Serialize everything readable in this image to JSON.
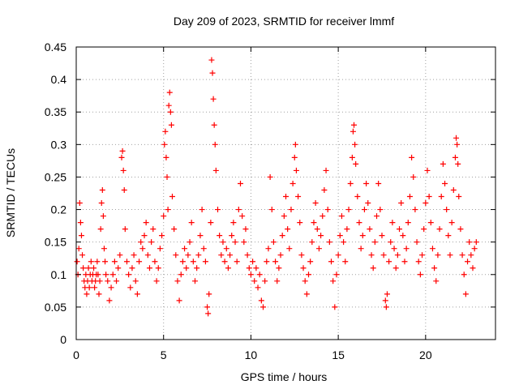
{
  "chart_data": {
    "type": "scatter",
    "title": "Day 209 of 2023, SRMTID for receiver lmmf",
    "xlabel": "GPS time / hours",
    "ylabel": "SRMTID / TECUs",
    "xlim": [
      0,
      24
    ],
    "ylim": [
      0,
      0.45
    ],
    "xticks": [
      0,
      5,
      10,
      15,
      20
    ],
    "xtick_labels": [
      "0",
      "5",
      "10",
      "15",
      "20"
    ],
    "yticks": [
      0,
      0.05,
      0.1,
      0.15,
      0.2,
      0.25,
      0.3,
      0.35,
      0.4,
      0.45
    ],
    "ytick_labels": [
      "0",
      "0.05",
      "0.1",
      "0.15",
      "0.2",
      "0.25",
      "0.3",
      "0.35",
      "0.4",
      "0.45"
    ],
    "grid": true,
    "marker": "+",
    "marker_color": "#ff0000",
    "series": [
      {
        "name": "SRMTID",
        "points": [
          [
            0.05,
            0.12
          ],
          [
            0.1,
            0.1
          ],
          [
            0.15,
            0.14
          ],
          [
            0.2,
            0.21
          ],
          [
            0.25,
            0.18
          ],
          [
            0.3,
            0.16
          ],
          [
            0.35,
            0.13
          ],
          [
            0.4,
            0.11
          ],
          [
            0.45,
            0.09
          ],
          [
            0.5,
            0.08
          ],
          [
            0.55,
            0.1
          ],
          [
            0.6,
            0.07
          ],
          [
            0.65,
            0.09
          ],
          [
            0.7,
            0.11
          ],
          [
            0.75,
            0.08
          ],
          [
            0.8,
            0.1
          ],
          [
            0.85,
            0.12
          ],
          [
            0.9,
            0.09
          ],
          [
            0.95,
            0.1
          ],
          [
            1.0,
            0.11
          ],
          [
            1.05,
            0.08
          ],
          [
            1.1,
            0.09
          ],
          [
            1.15,
            0.1
          ],
          [
            1.2,
            0.12
          ],
          [
            1.25,
            0.1
          ],
          [
            1.3,
            0.07
          ],
          [
            1.35,
            0.09
          ],
          [
            1.4,
            0.17
          ],
          [
            1.45,
            0.21
          ],
          [
            1.5,
            0.23
          ],
          [
            1.55,
            0.19
          ],
          [
            1.6,
            0.14
          ],
          [
            1.65,
            0.12
          ],
          [
            1.7,
            0.1
          ],
          [
            1.8,
            0.09
          ],
          [
            1.9,
            0.06
          ],
          [
            2.0,
            0.08
          ],
          [
            2.1,
            0.1
          ],
          [
            2.2,
            0.12
          ],
          [
            2.3,
            0.09
          ],
          [
            2.4,
            0.11
          ],
          [
            2.5,
            0.13
          ],
          [
            2.6,
            0.28
          ],
          [
            2.65,
            0.29
          ],
          [
            2.7,
            0.26
          ],
          [
            2.75,
            0.23
          ],
          [
            2.8,
            0.17
          ],
          [
            2.9,
            0.12
          ],
          [
            3.0,
            0.1
          ],
          [
            3.1,
            0.08
          ],
          [
            3.2,
            0.11
          ],
          [
            3.3,
            0.13
          ],
          [
            3.4,
            0.09
          ],
          [
            3.5,
            0.07
          ],
          [
            3.6,
            0.12
          ],
          [
            3.7,
            0.15
          ],
          [
            3.8,
            0.14
          ],
          [
            3.9,
            0.16
          ],
          [
            4.0,
            0.18
          ],
          [
            4.1,
            0.13
          ],
          [
            4.2,
            0.11
          ],
          [
            4.3,
            0.15
          ],
          [
            4.4,
            0.17
          ],
          [
            4.5,
            0.12
          ],
          [
            4.6,
            0.09
          ],
          [
            4.7,
            0.11
          ],
          [
            4.8,
            0.14
          ],
          [
            4.9,
            0.16
          ],
          [
            5.0,
            0.19
          ],
          [
            5.05,
            0.3
          ],
          [
            5.1,
            0.32
          ],
          [
            5.15,
            0.28
          ],
          [
            5.2,
            0.25
          ],
          [
            5.25,
            0.2
          ],
          [
            5.3,
            0.36
          ],
          [
            5.35,
            0.38
          ],
          [
            5.4,
            0.35
          ],
          [
            5.45,
            0.33
          ],
          [
            5.5,
            0.22
          ],
          [
            5.6,
            0.17
          ],
          [
            5.7,
            0.13
          ],
          [
            5.8,
            0.09
          ],
          [
            5.9,
            0.06
          ],
          [
            6.0,
            0.1
          ],
          [
            6.1,
            0.12
          ],
          [
            6.2,
            0.14
          ],
          [
            6.3,
            0.11
          ],
          [
            6.4,
            0.13
          ],
          [
            6.5,
            0.15
          ],
          [
            6.6,
            0.18
          ],
          [
            6.7,
            0.12
          ],
          [
            6.8,
            0.09
          ],
          [
            6.9,
            0.11
          ],
          [
            7.0,
            0.13
          ],
          [
            7.1,
            0.16
          ],
          [
            7.2,
            0.2
          ],
          [
            7.3,
            0.14
          ],
          [
            7.4,
            0.12
          ],
          [
            7.5,
            0.05
          ],
          [
            7.55,
            0.04
          ],
          [
            7.6,
            0.07
          ],
          [
            7.7,
            0.18
          ],
          [
            7.75,
            0.43
          ],
          [
            7.8,
            0.41
          ],
          [
            7.85,
            0.37
          ],
          [
            7.9,
            0.33
          ],
          [
            7.95,
            0.3
          ],
          [
            8.0,
            0.26
          ],
          [
            8.1,
            0.2
          ],
          [
            8.2,
            0.16
          ],
          [
            8.3,
            0.13
          ],
          [
            8.4,
            0.15
          ],
          [
            8.5,
            0.12
          ],
          [
            8.6,
            0.14
          ],
          [
            8.7,
            0.11
          ],
          [
            8.8,
            0.13
          ],
          [
            8.9,
            0.16
          ],
          [
            9.0,
            0.18
          ],
          [
            9.1,
            0.15
          ],
          [
            9.2,
            0.12
          ],
          [
            9.3,
            0.2
          ],
          [
            9.4,
            0.24
          ],
          [
            9.5,
            0.19
          ],
          [
            9.6,
            0.15
          ],
          [
            9.7,
            0.17
          ],
          [
            9.8,
            0.13
          ],
          [
            9.9,
            0.11
          ],
          [
            10.0,
            0.1
          ],
          [
            10.1,
            0.12
          ],
          [
            10.2,
            0.09
          ],
          [
            10.3,
            0.11
          ],
          [
            10.4,
            0.08
          ],
          [
            10.5,
            0.1
          ],
          [
            10.6,
            0.06
          ],
          [
            10.7,
            0.05
          ],
          [
            10.8,
            0.09
          ],
          [
            10.9,
            0.12
          ],
          [
            11.0,
            0.14
          ],
          [
            11.1,
            0.25
          ],
          [
            11.2,
            0.2
          ],
          [
            11.3,
            0.15
          ],
          [
            11.4,
            0.12
          ],
          [
            11.5,
            0.09
          ],
          [
            11.6,
            0.11
          ],
          [
            11.7,
            0.13
          ],
          [
            11.8,
            0.16
          ],
          [
            11.9,
            0.19
          ],
          [
            12.0,
            0.22
          ],
          [
            12.1,
            0.17
          ],
          [
            12.2,
            0.14
          ],
          [
            12.3,
            0.2
          ],
          [
            12.4,
            0.24
          ],
          [
            12.5,
            0.28
          ],
          [
            12.55,
            0.3
          ],
          [
            12.6,
            0.26
          ],
          [
            12.7,
            0.22
          ],
          [
            12.8,
            0.18
          ],
          [
            12.9,
            0.13
          ],
          [
            13.0,
            0.11
          ],
          [
            13.1,
            0.09
          ],
          [
            13.2,
            0.07
          ],
          [
            13.3,
            0.1
          ],
          [
            13.4,
            0.12
          ],
          [
            13.5,
            0.15
          ],
          [
            13.6,
            0.18
          ],
          [
            13.7,
            0.21
          ],
          [
            13.8,
            0.17
          ],
          [
            13.9,
            0.14
          ],
          [
            14.0,
            0.16
          ],
          [
            14.1,
            0.19
          ],
          [
            14.2,
            0.23
          ],
          [
            14.3,
            0.26
          ],
          [
            14.4,
            0.2
          ],
          [
            14.5,
            0.15
          ],
          [
            14.6,
            0.12
          ],
          [
            14.7,
            0.09
          ],
          [
            14.8,
            0.05
          ],
          [
            14.9,
            0.1
          ],
          [
            15.0,
            0.13
          ],
          [
            15.1,
            0.16
          ],
          [
            15.2,
            0.19
          ],
          [
            15.3,
            0.15
          ],
          [
            15.4,
            0.12
          ],
          [
            15.5,
            0.17
          ],
          [
            15.6,
            0.2
          ],
          [
            15.7,
            0.24
          ],
          [
            15.8,
            0.28
          ],
          [
            15.85,
            0.32
          ],
          [
            15.9,
            0.33
          ],
          [
            15.95,
            0.3
          ],
          [
            16.0,
            0.27
          ],
          [
            16.1,
            0.22
          ],
          [
            16.2,
            0.18
          ],
          [
            16.3,
            0.14
          ],
          [
            16.4,
            0.16
          ],
          [
            16.5,
            0.2
          ],
          [
            16.6,
            0.24
          ],
          [
            16.7,
            0.21
          ],
          [
            16.8,
            0.17
          ],
          [
            16.9,
            0.13
          ],
          [
            17.0,
            0.11
          ],
          [
            17.1,
            0.15
          ],
          [
            17.2,
            0.19
          ],
          [
            17.3,
            0.24
          ],
          [
            17.4,
            0.2
          ],
          [
            17.5,
            0.16
          ],
          [
            17.6,
            0.13
          ],
          [
            17.7,
            0.06
          ],
          [
            17.75,
            0.05
          ],
          [
            17.8,
            0.07
          ],
          [
            17.9,
            0.12
          ],
          [
            18.0,
            0.15
          ],
          [
            18.1,
            0.18
          ],
          [
            18.2,
            0.14
          ],
          [
            18.3,
            0.11
          ],
          [
            18.4,
            0.13
          ],
          [
            18.5,
            0.17
          ],
          [
            18.6,
            0.21
          ],
          [
            18.7,
            0.16
          ],
          [
            18.8,
            0.12
          ],
          [
            18.9,
            0.14
          ],
          [
            19.0,
            0.18
          ],
          [
            19.1,
            0.22
          ],
          [
            19.2,
            0.28
          ],
          [
            19.3,
            0.25
          ],
          [
            19.4,
            0.2
          ],
          [
            19.5,
            0.15
          ],
          [
            19.6,
            0.12
          ],
          [
            19.7,
            0.1
          ],
          [
            19.8,
            0.13
          ],
          [
            19.9,
            0.17
          ],
          [
            20.0,
            0.21
          ],
          [
            20.1,
            0.26
          ],
          [
            20.2,
            0.22
          ],
          [
            20.3,
            0.18
          ],
          [
            20.4,
            0.14
          ],
          [
            20.5,
            0.11
          ],
          [
            20.6,
            0.09
          ],
          [
            20.7,
            0.13
          ],
          [
            20.8,
            0.17
          ],
          [
            20.9,
            0.22
          ],
          [
            21.0,
            0.27
          ],
          [
            21.1,
            0.24
          ],
          [
            21.2,
            0.2
          ],
          [
            21.3,
            0.16
          ],
          [
            21.4,
            0.13
          ],
          [
            21.5,
            0.18
          ],
          [
            21.6,
            0.23
          ],
          [
            21.7,
            0.28
          ],
          [
            21.75,
            0.31
          ],
          [
            21.8,
            0.3
          ],
          [
            21.85,
            0.27
          ],
          [
            21.9,
            0.22
          ],
          [
            22.0,
            0.17
          ],
          [
            22.1,
            0.13
          ],
          [
            22.2,
            0.1
          ],
          [
            22.3,
            0.07
          ],
          [
            22.4,
            0.12
          ],
          [
            22.5,
            0.15
          ],
          [
            22.6,
            0.13
          ],
          [
            22.7,
            0.11
          ],
          [
            22.8,
            0.14
          ],
          [
            22.9,
            0.15
          ]
        ]
      }
    ]
  }
}
